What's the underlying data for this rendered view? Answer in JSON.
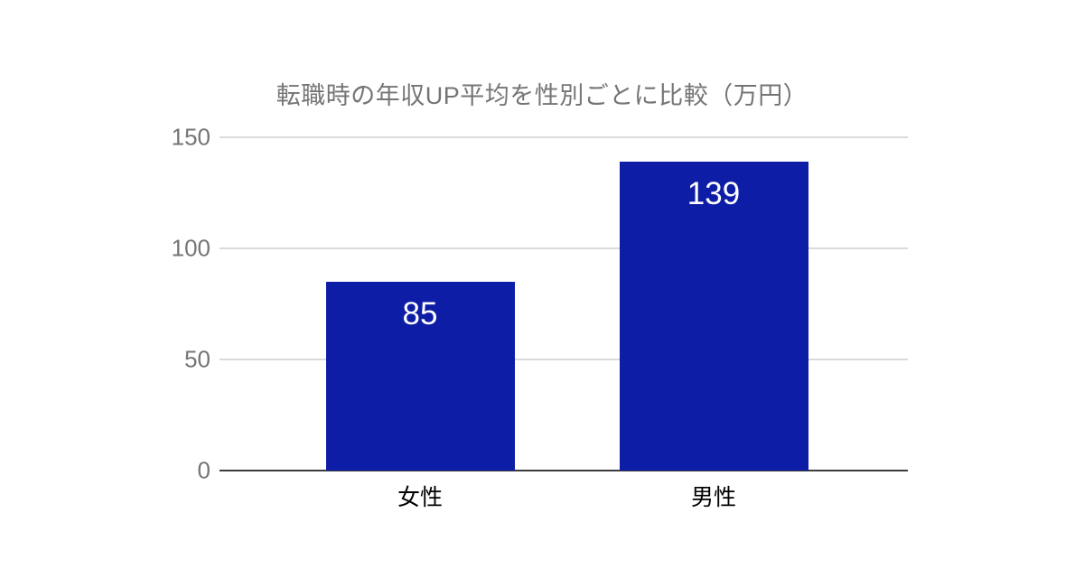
{
  "page": {
    "background_color": "#ffffff"
  },
  "chart_data": {
    "type": "bar",
    "title": "転職時の年収UP平均を性別ごとに比較（万円）",
    "categories": [
      "女性",
      "男性"
    ],
    "values": [
      85,
      139
    ],
    "value_labels": [
      "85",
      "139"
    ],
    "xlabel": "",
    "ylabel": "",
    "ylim": [
      0,
      150
    ],
    "yticks": [
      0,
      50,
      100,
      150
    ],
    "grid": true,
    "legend_position": "none",
    "bar_color": "#0e1da5",
    "value_label_color": "#ffffff",
    "title_color": "#757575",
    "ytick_label_color": "#757575",
    "category_label_color": "#000000",
    "gridline_color": "#dadada",
    "baseline_color": "#3c3c3c"
  }
}
